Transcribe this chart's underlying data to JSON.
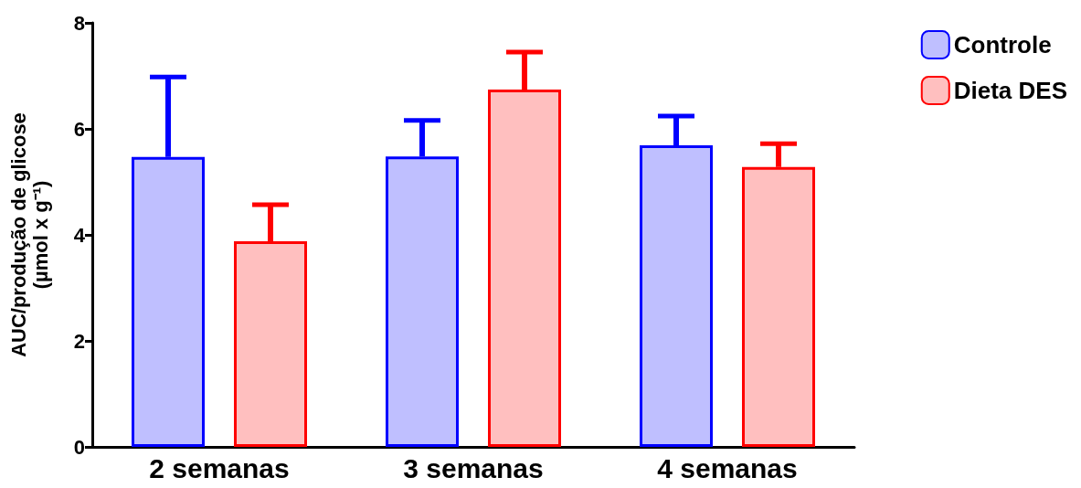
{
  "chart_data": {
    "type": "bar",
    "categories": [
      "2 semanas",
      "3 semanas",
      "4 semanas"
    ],
    "ylabel": "AUC/produção de glicose\n(µmol x g⁻¹)",
    "ylim": [
      0,
      8
    ],
    "yticks": [
      0,
      2,
      4,
      6,
      8
    ],
    "grid": false,
    "legend": "top right",
    "series": [
      {
        "name": "Controle",
        "color": "#0000ff",
        "values": [
          5.47,
          5.48,
          5.69
        ],
        "errors": [
          [
            5.47,
            6.98
          ],
          [
            5.48,
            6.16
          ],
          [
            5.69,
            6.24
          ]
        ]
      },
      {
        "name": "Dieta DES",
        "color": "#ff0000",
        "values": [
          3.88,
          6.74,
          5.28
        ],
        "errors": [
          [
            3.88,
            4.57
          ],
          [
            6.74,
            7.45
          ],
          [
            5.28,
            5.72
          ]
        ]
      }
    ]
  }
}
